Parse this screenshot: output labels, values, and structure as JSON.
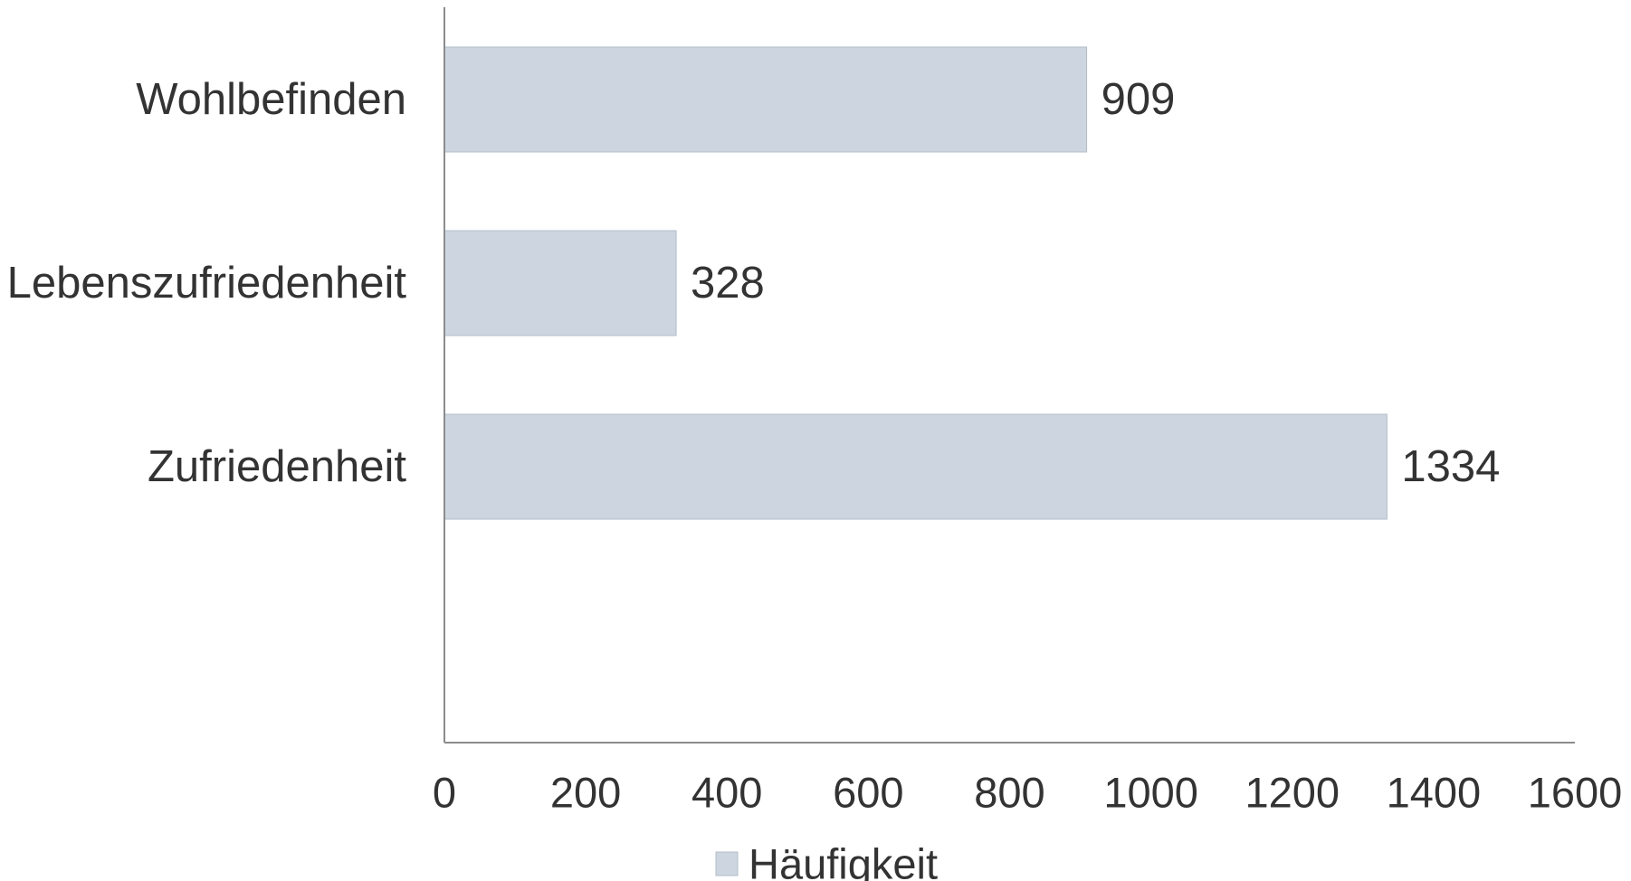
{
  "chart_data": {
    "type": "bar",
    "orientation": "horizontal",
    "categories": [
      "Wohlbefinden",
      "Lebenszufriedenheit",
      "Zufriedenheit"
    ],
    "series": [
      {
        "name": "Häufigkeit",
        "values": [
          909,
          328,
          1334
        ],
        "value_labels": [
          "909",
          "328",
          "1334"
        ]
      }
    ],
    "xlim": [
      0,
      1600
    ],
    "x_ticks": [
      0,
      200,
      400,
      600,
      800,
      1000,
      1200,
      1400,
      1600
    ],
    "x_tick_labels": [
      "0",
      "200",
      "400",
      "600",
      "800",
      "1000",
      "1200",
      "1400",
      "1600"
    ],
    "title": "",
    "xlabel": "",
    "ylabel": "",
    "grid": false,
    "legend_position": "bottom",
    "colors": {
      "bar_fill": "#cdd6e0",
      "bar_stroke": "#b3bdc9",
      "axis": "#8c8c8c",
      "text": "#333333"
    }
  }
}
